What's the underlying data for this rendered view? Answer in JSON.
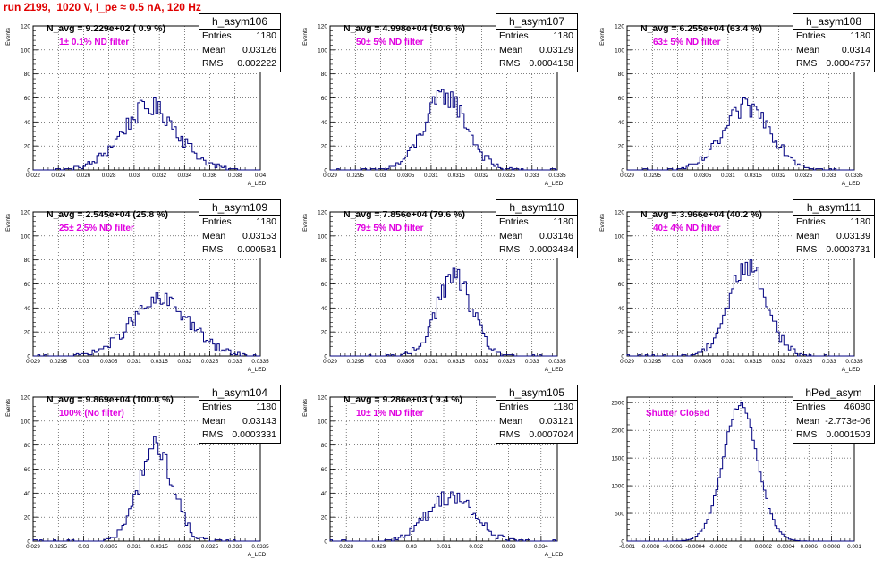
{
  "run_title": "run 2199,  1020 V, I_pe ≈ 0.5 nA, 120 Hz",
  "chart_data": [
    {
      "type": "histogram",
      "name": "h_asym106",
      "navg": "N_avg = 9.229e+02 ( 0.9 %)",
      "filter": "1± 0.1% ND filter",
      "stats": {
        "Entries": "1180",
        "Mean": "0.03126",
        "RMS": "0.002222"
      },
      "ylabel": "Events",
      "xlabel": "A_LED",
      "xlim": [
        0.022,
        0.04
      ],
      "ylim": [
        0,
        120
      ],
      "xticks": [
        "0.022",
        "0.024",
        "0.026",
        "0.028",
        "0.03",
        "0.032",
        "0.034",
        "0.036",
        "0.038",
        "0.04"
      ],
      "xtick_values": [
        0.022,
        0.024,
        0.026,
        0.028,
        0.03,
        0.032,
        0.034,
        0.036,
        0.038,
        0.04
      ],
      "yticks": [
        0,
        20,
        40,
        60,
        80,
        100,
        120
      ],
      "mean": 0.03126,
      "rms": 0.002222,
      "peak": 52
    },
    {
      "type": "histogram",
      "name": "h_asym107",
      "navg": "N_avg = 4.998e+04 (50.6 %)",
      "filter": "50± 5% ND filter",
      "stats": {
        "Entries": "1180",
        "Mean": "0.03129",
        "RMS": "0.0004168"
      },
      "ylabel": "Events",
      "xlabel": "A_LED",
      "xlim": [
        0.029,
        0.0335
      ],
      "ylim": [
        0,
        120
      ],
      "xticks": [
        "0.029",
        "0.0295",
        "0.03",
        "0.0305",
        "0.031",
        "0.0315",
        "0.032",
        "0.0325",
        "0.033",
        "0.0335"
      ],
      "xtick_values": [
        0.029,
        0.0295,
        0.03,
        0.0305,
        0.031,
        0.0315,
        0.032,
        0.0325,
        0.033,
        0.0335
      ],
      "yticks": [
        0,
        20,
        40,
        60,
        80,
        100,
        120
      ],
      "mean": 0.03129,
      "rms": 0.0004168,
      "peak": 62
    },
    {
      "type": "histogram",
      "name": "h_asym108",
      "navg": "N_avg = 6.255e+04 (63.4 %)",
      "filter": "63± 5% ND filter",
      "stats": {
        "Entries": "1180",
        "Mean": "0.0314",
        "RMS": "0.0004757"
      },
      "ylabel": "Events",
      "xlabel": "A_LED",
      "xlim": [
        0.029,
        0.0335
      ],
      "ylim": [
        0,
        120
      ],
      "xticks": [
        "0.029",
        "0.0295",
        "0.03",
        "0.0305",
        "0.031",
        "0.0315",
        "0.032",
        "0.0325",
        "0.033",
        "0.0335"
      ],
      "xtick_values": [
        0.029,
        0.0295,
        0.03,
        0.0305,
        0.031,
        0.0315,
        0.032,
        0.0325,
        0.033,
        0.0335
      ],
      "yticks": [
        0,
        20,
        40,
        60,
        80,
        100,
        120
      ],
      "mean": 0.0314,
      "rms": 0.0004757,
      "peak": 52
    },
    {
      "type": "histogram",
      "name": "h_asym109",
      "navg": "N_avg = 2.545e+04 (25.8 %)",
      "filter": "25± 2.5% ND filter",
      "stats": {
        "Entries": "1180",
        "Mean": "0.03153",
        "RMS": "0.000581"
      },
      "ylabel": "Events",
      "xlabel": "A_LED",
      "xlim": [
        0.029,
        0.0335
      ],
      "ylim": [
        0,
        120
      ],
      "xticks": [
        "0.029",
        "0.0295",
        "0.03",
        "0.0305",
        "0.031",
        "0.0315",
        "0.032",
        "0.0325",
        "0.033",
        "0.0335"
      ],
      "xtick_values": [
        0.029,
        0.0295,
        0.03,
        0.0305,
        0.031,
        0.0315,
        0.032,
        0.0325,
        0.033,
        0.0335
      ],
      "yticks": [
        0,
        20,
        40,
        60,
        80,
        100,
        120
      ],
      "mean": 0.03153,
      "rms": 0.000581,
      "peak": 46
    },
    {
      "type": "histogram",
      "name": "h_asym110",
      "navg": "N_avg = 7.856e+04 (79.6 %)",
      "filter": "79± 5% ND filter",
      "stats": {
        "Entries": "1180",
        "Mean": "0.03146",
        "RMS": "0.0003484"
      },
      "ylabel": "Events",
      "xlabel": "A_LED",
      "xlim": [
        0.029,
        0.0335
      ],
      "ylim": [
        0,
        120
      ],
      "xticks": [
        "0.029",
        "0.0295",
        "0.03",
        "0.0305",
        "0.031",
        "0.0315",
        "0.032",
        "0.0325",
        "0.033",
        "0.0335"
      ],
      "xtick_values": [
        0.029,
        0.0295,
        0.03,
        0.0305,
        0.031,
        0.0315,
        0.032,
        0.0325,
        0.033,
        0.0335
      ],
      "yticks": [
        0,
        20,
        40,
        60,
        80,
        100,
        120
      ],
      "mean": 0.03146,
      "rms": 0.0003484,
      "peak": 66
    },
    {
      "type": "histogram",
      "name": "h_asym111",
      "navg": "N_avg = 3.966e+04 (40.2 %)",
      "filter": "40± 4% ND filter",
      "stats": {
        "Entries": "1180",
        "Mean": "0.03139",
        "RMS": "0.0003731"
      },
      "ylabel": "Events",
      "xlabel": "A_LED",
      "xlim": [
        0.029,
        0.0335
      ],
      "ylim": [
        0,
        120
      ],
      "xticks": [
        "0.029",
        "0.0295",
        "0.03",
        "0.0305",
        "0.031",
        "0.0315",
        "0.032",
        "0.0325",
        "0.033",
        "0.0335"
      ],
      "xtick_values": [
        0.029,
        0.0295,
        0.03,
        0.0305,
        0.031,
        0.0315,
        0.032,
        0.0325,
        0.033,
        0.0335
      ],
      "yticks": [
        0,
        20,
        40,
        60,
        80,
        100,
        120
      ],
      "mean": 0.03139,
      "rms": 0.0003731,
      "peak": 76
    },
    {
      "type": "histogram",
      "name": "h_asym104",
      "navg": "N_avg = 9.869e+04 (100.0 %)",
      "filter": "100% (No filter)",
      "stats": {
        "Entries": "1180",
        "Mean": "0.03143",
        "RMS": "0.0003331"
      },
      "ylabel": "Events",
      "xlabel": "A_LED",
      "xlim": [
        0.029,
        0.0335
      ],
      "ylim": [
        0,
        120
      ],
      "xticks": [
        "0.029",
        "0.0295",
        "0.03",
        "0.0305",
        "0.031",
        "0.0315",
        "0.032",
        "0.0325",
        "0.033",
        "0.0335"
      ],
      "xtick_values": [
        0.029,
        0.0295,
        0.03,
        0.0305,
        0.031,
        0.0315,
        0.032,
        0.0325,
        0.033,
        0.0335
      ],
      "yticks": [
        0,
        20,
        40,
        60,
        80,
        100,
        120
      ],
      "mean": 0.03143,
      "rms": 0.0003331,
      "peak": 79
    },
    {
      "type": "histogram",
      "name": "h_asym105",
      "navg": "N_avg = 9.286e+03 ( 9.4 %)",
      "filter": "10± 1% ND filter",
      "stats": {
        "Entries": "1180",
        "Mean": "0.03121",
        "RMS": "0.0007024"
      },
      "ylabel": "Events",
      "xlabel": "A_LED",
      "xlim": [
        0.0275,
        0.0345
      ],
      "ylim": [
        0,
        120
      ],
      "xticks": [
        "0.028",
        "0.029",
        "0.03",
        "0.031",
        "0.032",
        "0.033",
        "0.034"
      ],
      "xtick_values": [
        0.028,
        0.029,
        0.03,
        0.031,
        0.032,
        0.033,
        0.034
      ],
      "yticks": [
        0,
        20,
        40,
        60,
        80,
        100,
        120
      ],
      "mean": 0.03121,
      "rms": 0.0007024,
      "peak": 38
    },
    {
      "type": "histogram",
      "name": "hPed_asym",
      "navg": "",
      "filter": "Shutter Closed",
      "stats": {
        "Entries": "46080",
        "Mean": "-2.773e-06",
        "RMS": "0.0001503"
      },
      "ylabel": "",
      "xlabel": "",
      "xlim": [
        -0.001,
        0.001
      ],
      "ylim": [
        0,
        2600
      ],
      "xticks": [
        "-0.001",
        "-0.0008",
        "-0.0006",
        "-0.0004",
        "-0.0002",
        "0",
        "0.0002",
        "0.0004",
        "0.0006",
        "0.0008",
        "0.001"
      ],
      "xtick_values": [
        -0.001,
        -0.0008,
        -0.0006,
        -0.0004,
        -0.0002,
        0,
        0.0002,
        0.0004,
        0.0006,
        0.0008,
        0.001
      ],
      "yticks": [
        0,
        500,
        1000,
        1500,
        2000,
        2500
      ],
      "mean": -2.773e-06,
      "rms": 0.0001503,
      "peak": 2480
    }
  ]
}
